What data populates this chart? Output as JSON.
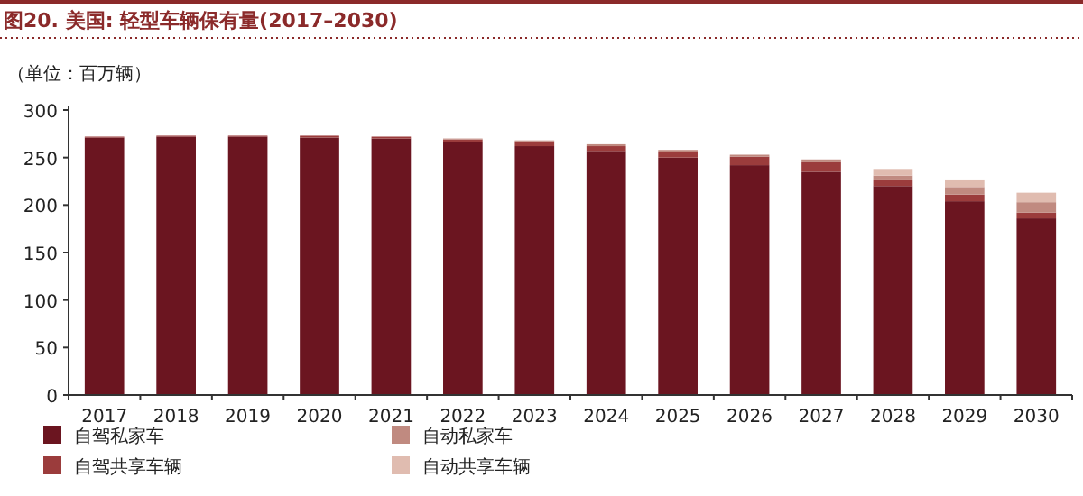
{
  "chart_data": {
    "type": "bar",
    "title": "图20. 美国: 轻型车辆保有量(2017–2030)",
    "ylabel": "（单位：百万辆）",
    "categories": [
      "2017",
      "2018",
      "2019",
      "2020",
      "2021",
      "2022",
      "2023",
      "2024",
      "2025",
      "2026",
      "2027",
      "2028",
      "2029",
      "2030"
    ],
    "stacked": true,
    "ylim": [
      0,
      300
    ],
    "yticks": [
      0,
      50,
      100,
      150,
      200,
      250,
      300
    ],
    "grid": false,
    "legend": "bottom",
    "series": [
      {
        "name": "自驾私家车",
        "color": "#6b1520",
        "values": [
          271,
          272,
          272,
          271,
          270,
          266,
          262,
          257,
          250,
          242,
          235,
          220,
          204,
          186
        ]
      },
      {
        "name": "自驾共享车辆",
        "color": "#9b3c3c",
        "values": [
          1,
          1,
          1,
          2,
          2,
          3,
          5,
          5,
          6,
          9,
          10,
          6,
          7,
          6
        ]
      },
      {
        "name": "自动私家车",
        "color": "#c08a80",
        "values": [
          0,
          0,
          0,
          0,
          0,
          1,
          1,
          2,
          2,
          2,
          3,
          5,
          8,
          11
        ]
      },
      {
        "name": "自动共享车辆",
        "color": "#e0bcb0",
        "values": [
          0,
          0,
          0,
          0,
          0,
          0,
          0,
          0,
          null,
          null,
          null,
          7,
          7,
          10
        ]
      }
    ]
  }
}
